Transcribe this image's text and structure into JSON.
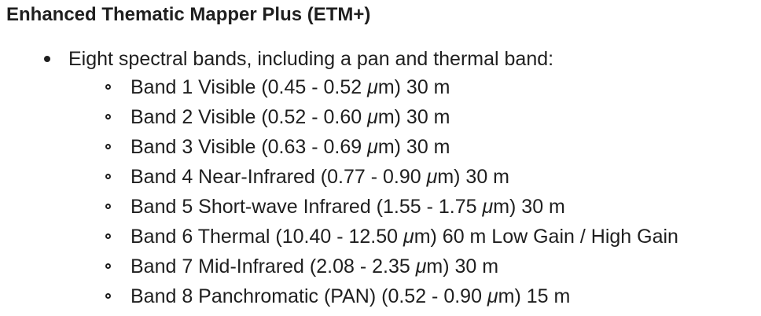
{
  "heading": "Enhanced Thematic Mapper Plus (ETM+)",
  "summary": "Eight spectral bands, including a pan and thermal band:",
  "bands": [
    {
      "pre": "Band 1 Visible (0.45 - 0.52 ",
      "unit": "μ",
      "post": "m) 30 m"
    },
    {
      "pre": "Band 2 Visible (0.52 - 0.60 ",
      "unit": "μ",
      "post": "m) 30 m"
    },
    {
      "pre": "Band 3 Visible (0.63 - 0.69 ",
      "unit": "μ",
      "post": "m) 30 m"
    },
    {
      "pre": "Band 4 Near-Infrared (0.77 - 0.90 ",
      "unit": "μ",
      "post": "m) 30 m"
    },
    {
      "pre": "Band 5 Short-wave Infrared (1.55 - 1.75 ",
      "unit": "μ",
      "post": "m) 30 m"
    },
    {
      "pre": "Band 6 Thermal (10.40 - 12.50 ",
      "unit": "μ",
      "post": "m) 60 m Low Gain / High Gain"
    },
    {
      "pre": "Band 7 Mid-Infrared (2.08 - 2.35 ",
      "unit": "μ",
      "post": "m) 30 m"
    },
    {
      "pre": "Band 8 Panchromatic (PAN) (0.52 - 0.90 ",
      "unit": "μ",
      "post": "m) 15 m"
    }
  ]
}
